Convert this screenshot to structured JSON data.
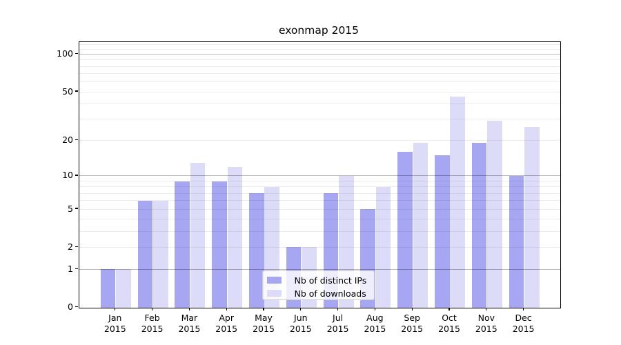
{
  "figure": {
    "background": "#ffffff"
  },
  "chart_data": {
    "type": "bar",
    "title": "exonmap 2015",
    "categories": [
      "Jan 2015",
      "Feb 2015",
      "Mar 2015",
      "Apr 2015",
      "May 2015",
      "Jun 2015",
      "Jul 2015",
      "Aug 2015",
      "Sep 2015",
      "Oct 2015",
      "Nov 2015",
      "Dec 2015"
    ],
    "series": [
      {
        "name": "Nb of distinct IPs",
        "color": "#a6a6f2",
        "values": [
          1,
          6,
          9,
          9,
          7,
          2,
          7,
          5,
          16,
          15,
          19,
          10
        ]
      },
      {
        "name": "Nb of downloads",
        "color": "#dcdcf8",
        "values": [
          1,
          6,
          13,
          12,
          8,
          2,
          10,
          8,
          19,
          46,
          29,
          26
        ]
      }
    ],
    "xlabel": "",
    "ylabel": "",
    "yscale": "log1p",
    "ylim": [
      0,
      126
    ],
    "yticks": [
      0,
      1,
      2,
      5,
      10,
      20,
      50,
      100
    ],
    "ytick_labels": [
      "0",
      "1",
      "2",
      "5",
      "10",
      "20",
      "50",
      "100"
    ],
    "grid": true,
    "grid_major_values": [
      1,
      10,
      100
    ],
    "grid_minor_values": [
      2,
      3,
      4,
      5,
      6,
      7,
      8,
      9,
      20,
      30,
      40,
      50,
      60,
      70,
      80,
      90,
      110,
      120
    ],
    "grid_major_color": "rgba(0,0,0,0.28)",
    "grid_minor_color": "rgba(0,0,0,0.07)",
    "legend_position": "inside bottom-center",
    "spine_color": "#000000"
  }
}
